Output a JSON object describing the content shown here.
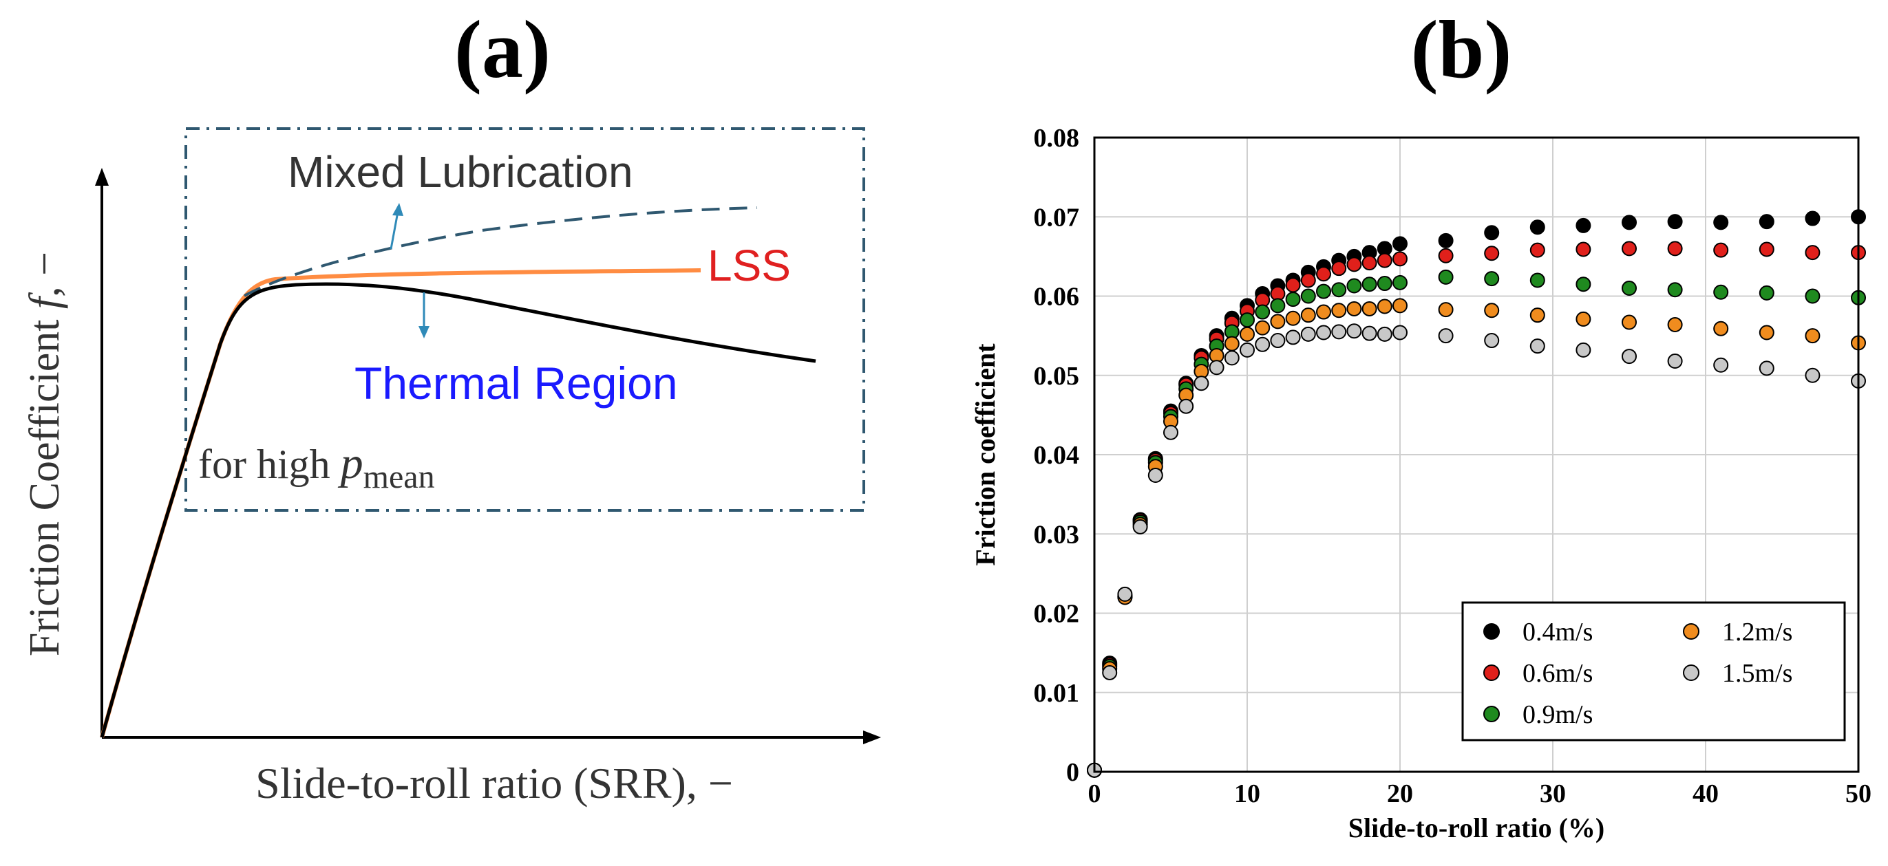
{
  "panel_a": {
    "label": "(a)",
    "y_label_main": "Friction Coefficient ",
    "y_label_var": "f",
    "y_label_tail": ", −",
    "x_label": "Slide-to-roll ratio (SRR), −",
    "mixed_label": "Mixed Lubrication",
    "lss_label": "LSS",
    "thermal_label": "Thermal Region",
    "condition_prefix": "for high ",
    "condition_var": "p",
    "condition_sub": "mean",
    "colors": {
      "lss": "#ff8c42",
      "lss_text": "#e02020",
      "thermal_text": "#1a1aff",
      "dashed": "#2f5870",
      "axis": "#000000"
    }
  },
  "chart_data": {
    "type": "scatter",
    "panel_label": "(b)",
    "title": "",
    "xlabel": "Slide-to-roll ratio (%)",
    "ylabel": "Friction coefficient",
    "xlim": [
      0,
      50
    ],
    "ylim": [
      0,
      0.08
    ],
    "xticks": [
      "0",
      "10",
      "20",
      "30",
      "40",
      "50"
    ],
    "yticks": [
      "0",
      "0.01",
      "0.02",
      "0.03",
      "0.04",
      "0.05",
      "0.06",
      "0.07",
      "0.08"
    ],
    "grid": true,
    "legend_position": "bottom-right",
    "x": [
      0,
      1,
      2,
      3,
      4,
      5,
      6,
      7,
      8,
      9,
      10,
      11,
      12,
      13,
      14,
      15,
      16,
      17,
      18,
      19,
      20,
      23,
      26,
      29,
      32,
      35,
      38,
      41,
      44,
      47,
      50
    ],
    "series": [
      {
        "name": "0.4m/s",
        "color": "#000000",
        "values": [
          0.0002,
          0.0137,
          0.0222,
          0.0318,
          0.0395,
          0.0455,
          0.049,
          0.0525,
          0.055,
          0.0572,
          0.0588,
          0.0603,
          0.0613,
          0.062,
          0.063,
          0.0637,
          0.0645,
          0.065,
          0.0655,
          0.066,
          0.0666,
          0.067,
          0.068,
          0.0687,
          0.0689,
          0.0693,
          0.0694,
          0.0693,
          0.0694,
          0.0698,
          0.07
        ]
      },
      {
        "name": "0.6m/s",
        "color": "#e0201b",
        "values": [
          0.0002,
          0.0135,
          0.0221,
          0.0317,
          0.0393,
          0.0452,
          0.0488,
          0.0522,
          0.0546,
          0.0566,
          0.0581,
          0.0595,
          0.0603,
          0.0614,
          0.062,
          0.0628,
          0.0635,
          0.064,
          0.0642,
          0.0645,
          0.0647,
          0.0651,
          0.0654,
          0.0658,
          0.0659,
          0.066,
          0.066,
          0.0658,
          0.0659,
          0.0655,
          0.0655
        ]
      },
      {
        "name": "0.9m/s",
        "color": "#1f8a1f",
        "values": [
          0.0002,
          0.0133,
          0.0221,
          0.0315,
          0.039,
          0.0448,
          0.0483,
          0.0514,
          0.0537,
          0.0555,
          0.057,
          0.058,
          0.0588,
          0.0596,
          0.06,
          0.0606,
          0.0608,
          0.0613,
          0.0615,
          0.0616,
          0.0617,
          0.0624,
          0.0622,
          0.062,
          0.0615,
          0.061,
          0.0608,
          0.0605,
          0.0604,
          0.06,
          0.0598
        ]
      },
      {
        "name": "1.2m/s",
        "color": "#f08c1e",
        "values": [
          0.0002,
          0.013,
          0.022,
          0.0312,
          0.0385,
          0.0442,
          0.0475,
          0.0505,
          0.0525,
          0.054,
          0.0552,
          0.056,
          0.0568,
          0.0572,
          0.0576,
          0.058,
          0.0582,
          0.0584,
          0.0584,
          0.0587,
          0.0588,
          0.0583,
          0.0582,
          0.0576,
          0.0571,
          0.0567,
          0.0564,
          0.0559,
          0.0554,
          0.055,
          0.0541
        ]
      },
      {
        "name": "1.5m/s",
        "color": "#c8c8c8",
        "values": [
          0.0002,
          0.0125,
          0.0224,
          0.0309,
          0.0374,
          0.0428,
          0.0461,
          0.049,
          0.051,
          0.0522,
          0.0532,
          0.0539,
          0.0544,
          0.0548,
          0.0552,
          0.0554,
          0.0555,
          0.0556,
          0.0553,
          0.0552,
          0.0554,
          0.055,
          0.0544,
          0.0537,
          0.0532,
          0.0524,
          0.0518,
          0.0513,
          0.0509,
          0.05,
          0.0493
        ]
      }
    ]
  }
}
